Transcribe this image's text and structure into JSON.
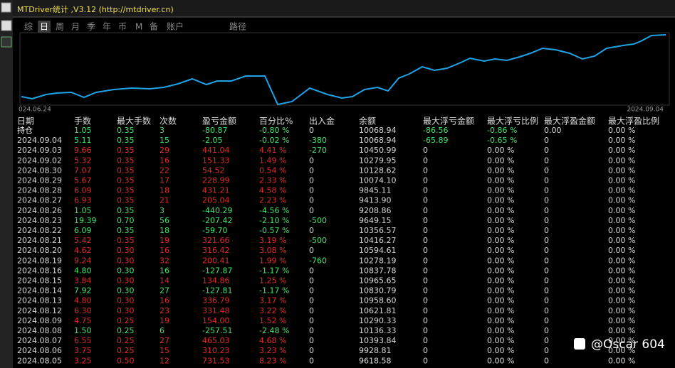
{
  "window": {
    "title": "MTDriver统计 ,V3.12 (http://mtdriver.cn)"
  },
  "tabs": [
    "综",
    "日",
    "周",
    "月",
    "季",
    "年",
    "币",
    "M",
    "备",
    "账户",
    "路径"
  ],
  "active_tab": 1,
  "curve": {
    "start_label": "024.06.24",
    "end_label": "2024.09.04"
  },
  "table": {
    "headers": [
      "日期",
      "手数",
      "最大手数",
      "次数",
      "盈亏金额",
      "百分比%",
      "出入金",
      "余额",
      "最大浮亏金额",
      "最大浮亏比例",
      "最大浮盈金额",
      "最大浮盈比例"
    ],
    "rows": [
      [
        "持仓",
        "1.05",
        "0.35",
        "3",
        "-80.87",
        "-0.80 %",
        "0",
        "10068.94",
        "-86.56",
        "-0.86 %",
        "0.00",
        "0.00 %"
      ],
      [
        "2024.09.04",
        "5.11",
        "0.35",
        "15",
        "-2.05",
        "-0.02 %",
        "-380",
        "10068.94",
        "-65.89",
        "-0.65 %",
        "0",
        "0.00 %"
      ],
      [
        "2024.09.03",
        "9.66",
        "0.35",
        "29",
        "441.04",
        "4.41 %",
        "-270",
        "10450.99",
        "0",
        "0.00 %",
        "0",
        "0.00 %"
      ],
      [
        "2024.09.02",
        "5.32",
        "0.35",
        "16",
        "151.33",
        "1.49 %",
        "0",
        "10279.95",
        "0",
        "0.00 %",
        "0",
        "0.00 %"
      ],
      [
        "2024.08.30",
        "7.07",
        "0.35",
        "22",
        "54.52",
        "0.54 %",
        "0",
        "10128.62",
        "0",
        "0.00 %",
        "0",
        "0.00 %"
      ],
      [
        "2024.08.29",
        "5.67",
        "0.35",
        "17",
        "228.99",
        "2.33 %",
        "0",
        "10074.10",
        "0",
        "0.00 %",
        "0",
        "0.00 %"
      ],
      [
        "2024.08.28",
        "6.09",
        "0.35",
        "18",
        "431.21",
        "4.58 %",
        "0",
        "9845.11",
        "0",
        "0.00 %",
        "0",
        "0.00 %"
      ],
      [
        "2024.08.27",
        "6.93",
        "0.35",
        "21",
        "205.04",
        "2.23 %",
        "0",
        "9413.90",
        "0",
        "0.00 %",
        "0",
        "0.00 %"
      ],
      [
        "2024.08.26",
        "1.05",
        "0.35",
        "3",
        "-440.29",
        "-4.56 %",
        "0",
        "9208.86",
        "0",
        "0.00 %",
        "0",
        "0.00 %"
      ],
      [
        "2024.08.23",
        "19.39",
        "0.70",
        "56",
        "-207.42",
        "-2.10 %",
        "-500",
        "9649.15",
        "0",
        "0.00 %",
        "0",
        "0.00 %"
      ],
      [
        "2024.08.22",
        "6.09",
        "0.35",
        "18",
        "-59.70",
        "-0.57 %",
        "0",
        "10356.57",
        "0",
        "0.00 %",
        "0",
        "0.00 %"
      ],
      [
        "2024.08.21",
        "5.42",
        "0.35",
        "19",
        "321.66",
        "3.19 %",
        "-500",
        "10416.27",
        "0",
        "0.00 %",
        "0",
        "0.00 %"
      ],
      [
        "2024.08.20",
        "4.62",
        "0.30",
        "16",
        "316.42",
        "3.08 %",
        "0",
        "10594.61",
        "0",
        "0.00 %",
        "0",
        "0.00 %"
      ],
      [
        "2024.08.19",
        "9.24",
        "0.30",
        "32",
        "200.41",
        "1.99 %",
        "-760",
        "10278.19",
        "0",
        "0.00 %",
        "0",
        "0.00 %"
      ],
      [
        "2024.08.16",
        "4.80",
        "0.30",
        "16",
        "-127.87",
        "-1.17 %",
        "0",
        "10837.78",
        "0",
        "0.00 %",
        "0",
        "0.00 %"
      ],
      [
        "2024.08.15",
        "3.84",
        "0.30",
        "14",
        "134.86",
        "1.25 %",
        "0",
        "10965.65",
        "0",
        "0.00 %",
        "0",
        "0.00 %"
      ],
      [
        "2024.08.14",
        "7.92",
        "0.30",
        "27",
        "-127.81",
        "-1.17 %",
        "0",
        "10830.79",
        "0",
        "0.00 %",
        "0",
        "0.00 %"
      ],
      [
        "2024.08.13",
        "4.80",
        "0.30",
        "16",
        "336.79",
        "3.17 %",
        "0",
        "10958.60",
        "0",
        "0.00 %",
        "0",
        "0.00 %"
      ],
      [
        "2024.08.12",
        "6.30",
        "0.30",
        "23",
        "331.48",
        "3.22 %",
        "0",
        "10621.81",
        "0",
        "0.00 %",
        "0",
        "0.00 %"
      ],
      [
        "2024.08.09",
        "4.75",
        "0.25",
        "19",
        "154.00",
        "1.52 %",
        "0",
        "10290.33",
        "0",
        "0.00 %",
        "0",
        "0.00 %"
      ],
      [
        "2024.08.08",
        "1.50",
        "0.25",
        "6",
        "-257.51",
        "-2.48 %",
        "0",
        "10136.33",
        "0",
        "0.00 %",
        "0",
        "0.00 %"
      ],
      [
        "2024.08.07",
        "6.55",
        "0.25",
        "27",
        "465.03",
        "4.68 %",
        "0",
        "10393.84",
        "0",
        "0.00 %",
        "0",
        "0.00 %"
      ],
      [
        "2024.08.06",
        "3.75",
        "0.25",
        "15",
        "310.23",
        "3.23 %",
        "0",
        "9928.81",
        "0",
        "0.00 %",
        "0",
        "0.00 %"
      ],
      [
        "2024.08.05",
        "3.25",
        "0.50",
        "12",
        "731.53",
        "8.23 %",
        "0",
        "9618.58",
        "0",
        "0.00 %",
        "0",
        "0.00 %"
      ]
    ]
  },
  "watermark": "@Oscar 604"
}
